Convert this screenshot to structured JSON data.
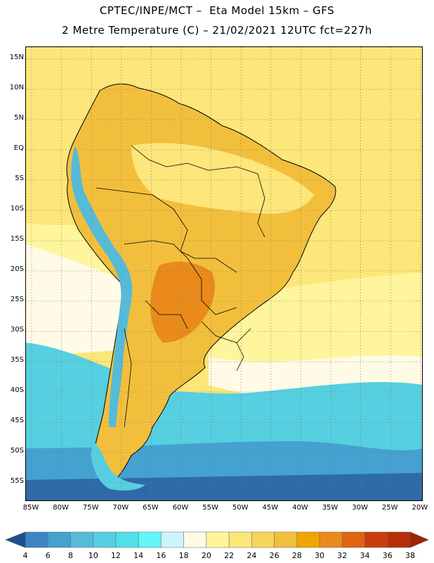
{
  "header": {
    "line1": "CPTEC/INPE/MCT –  Eta Model 15km – GFS",
    "line2": "2 Metre Temperature (C) – 21/02/2021 12UTC fct=227h"
  },
  "axes": {
    "lat_labels": [
      "15N",
      "10N",
      "5N",
      "EQ",
      "5S",
      "10S",
      "15S",
      "20S",
      "25S",
      "30S",
      "35S",
      "40S",
      "45S",
      "50S",
      "55S"
    ],
    "lon_labels": [
      "85W",
      "80W",
      "75W",
      "70W",
      "65W",
      "60W",
      "55W",
      "50W",
      "45W",
      "40W",
      "35W",
      "30W",
      "25W",
      "20W"
    ]
  },
  "colorbar": {
    "values": [
      "4",
      "6",
      "8",
      "10",
      "12",
      "14",
      "16",
      "18",
      "20",
      "22",
      "24",
      "26",
      "28",
      "30",
      "32",
      "34",
      "36",
      "38"
    ],
    "colors": [
      "#2f6aa8",
      "#3b86c2",
      "#45a1d0",
      "#56bbd9",
      "#56cfe0",
      "#4fe0ea",
      "#63f6f8",
      "#cdf4fb",
      "#fffbe6",
      "#fff59c",
      "#fde67a",
      "#f7d45a",
      "#f2bf3d",
      "#f0a500",
      "#e98a1b",
      "#e06412",
      "#c93d0a",
      "#b52e08"
    ],
    "low_arrow_color": "#1f4f8f",
    "high_arrow_color": "#9e2206"
  },
  "map_colors": {
    "ocean_tropical": "#fde67a",
    "ocean_warm": "#fff59c",
    "ocean_mild": "#fffbe6",
    "ocean_cool": "#56cfe0",
    "ocean_cold": "#45a1d0",
    "ocean_coldest": "#2f6aa8",
    "land_hot": "#f2bf3d",
    "land_warm": "#fde67a",
    "land_very_hot": "#e98a1b",
    "andes": "#56bbd9",
    "borders": "#000000",
    "gridline": "#777777"
  }
}
